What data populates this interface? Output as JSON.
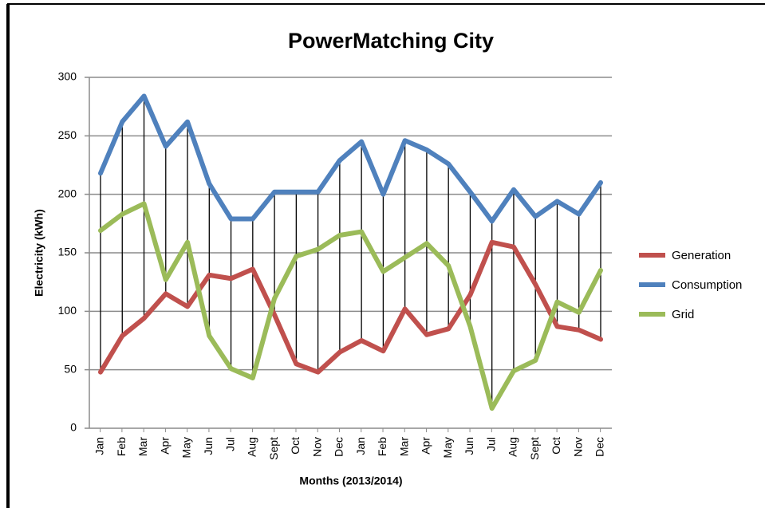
{
  "chart_data": {
    "type": "line",
    "title": "PowerMatching City",
    "xlabel": "Months (2013/2014)",
    "ylabel": "Electricity (kWh)",
    "categories": [
      "Jan",
      "Feb",
      "Mar",
      "Apr",
      "May",
      "Jun",
      "Jul",
      "Aug",
      "Sept",
      "Oct",
      "Nov",
      "Dec",
      "Jan",
      "Feb",
      "Mar",
      "Apr",
      "May",
      "Jun",
      "Jul",
      "Aug",
      "Sept",
      "Oct",
      "Nov",
      "Dec"
    ],
    "series": [
      {
        "name": "Generation",
        "color": "#c0504d",
        "values": [
          48,
          79,
          94,
          115,
          104,
          131,
          128,
          136,
          97,
          55,
          48,
          65,
          75,
          66,
          102,
          80,
          85,
          114,
          159,
          155,
          123,
          87,
          84,
          76
        ]
      },
      {
        "name": "Consumption",
        "color": "#4f81bd",
        "values": [
          218,
          262,
          284,
          241,
          262,
          209,
          179,
          179,
          202,
          202,
          202,
          229,
          245,
          200,
          246,
          238,
          226,
          202,
          177,
          204,
          181,
          194,
          183,
          210
        ]
      },
      {
        "name": "Grid",
        "color": "#9bbb59",
        "values": [
          169,
          183,
          192,
          127,
          159,
          79,
          51,
          43,
          111,
          147,
          153,
          165,
          168,
          134,
          146,
          158,
          139,
          87,
          17,
          49,
          58,
          108,
          99,
          135
        ]
      }
    ],
    "ylim": [
      0,
      300
    ],
    "yticks": [
      0,
      50,
      100,
      150,
      200,
      250,
      300
    ],
    "grid": true,
    "legend": "right",
    "drop_lines": true
  }
}
